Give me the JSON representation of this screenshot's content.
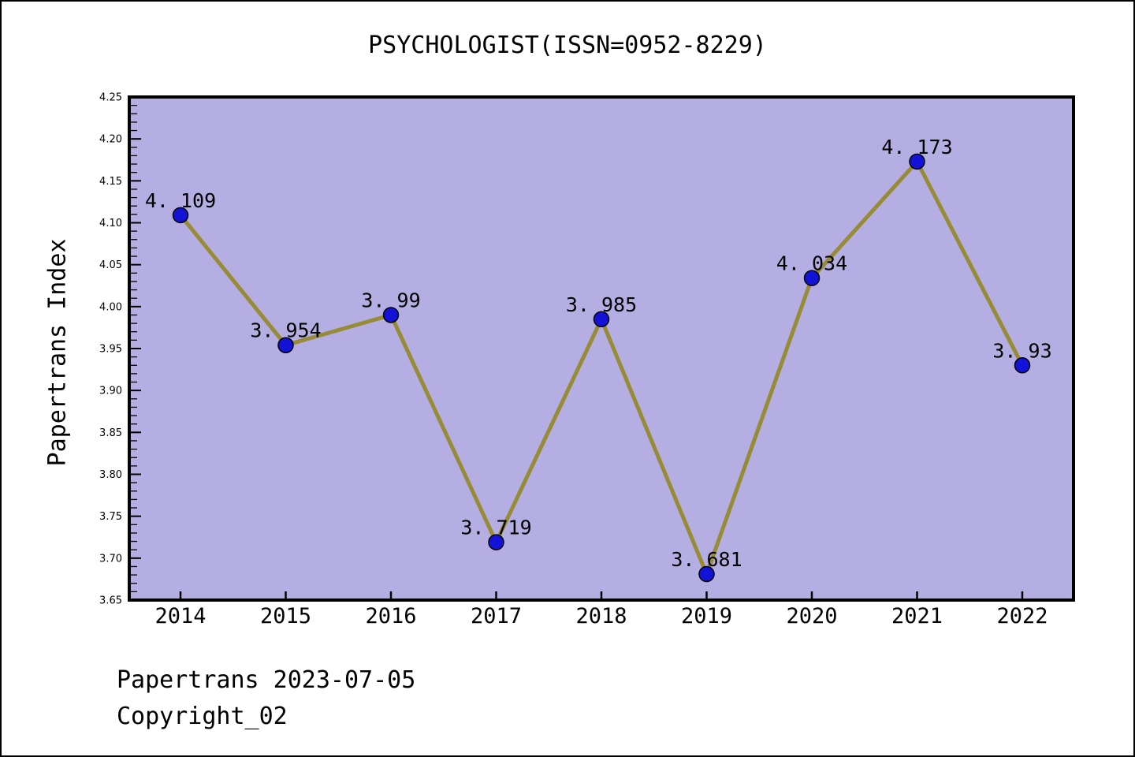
{
  "title": "PSYCHOLOGIST(ISSN=0952-8229)",
  "footer": {
    "line1": "Papertrans 2023-07-05",
    "line2": "Copyright_02"
  },
  "colors": {
    "page_bg": "#ffffff",
    "plot_bg": "#b5aee2",
    "line": "#978b35",
    "marker": "#1313d7",
    "marker_edge": "#000000",
    "frame": "#000000",
    "text": "#000000"
  },
  "chart_data": {
    "type": "line",
    "title": "PSYCHOLOGIST(ISSN=0952-8229)",
    "xlabel": "",
    "ylabel": "Papertrans Index",
    "categories": [
      "2014",
      "2015",
      "2016",
      "2017",
      "2018",
      "2019",
      "2020",
      "2021",
      "2022"
    ],
    "values": [
      4.109,
      3.954,
      3.99,
      3.719,
      3.985,
      3.681,
      4.034,
      4.173,
      3.93
    ],
    "point_labels": [
      "4. 109",
      "3. 954",
      "3. 99",
      "3. 719",
      "3. 985",
      "3. 681",
      "4. 034",
      "4. 173",
      "3. 93"
    ],
    "ylim": [
      3.65,
      4.25
    ],
    "y_major_step": 0.05,
    "y_minor_step": 0.01,
    "y_tick_labels": [
      "3.65",
      "3.70",
      "3.75",
      "3.80",
      "3.85",
      "3.90",
      "3.95",
      "4.00",
      "4.05",
      "4.10",
      "4.15",
      "4.20",
      "4.25"
    ],
    "grid": false,
    "legend": null
  }
}
